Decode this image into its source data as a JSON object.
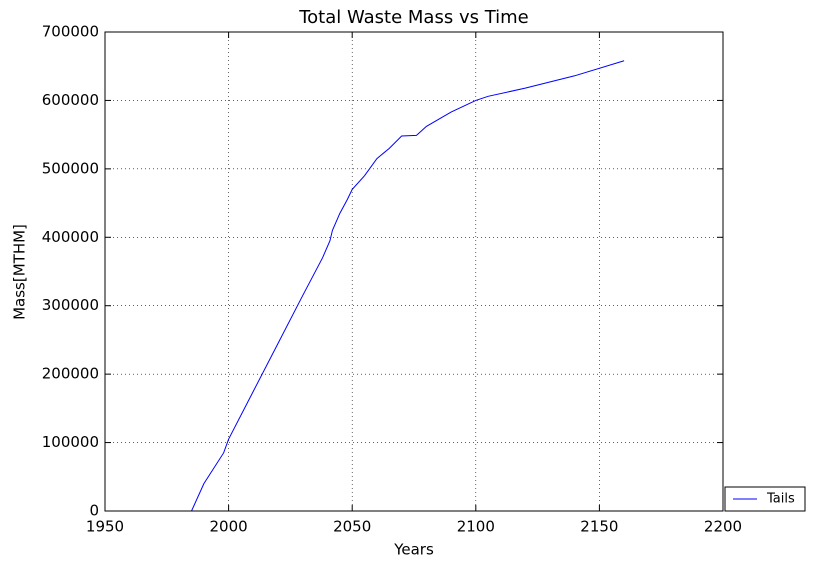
{
  "chart_data": {
    "type": "line",
    "title": "Total Waste Mass vs Time",
    "x_label": "Years",
    "y_label": "Mass[MTHM]",
    "x": [
      1970,
      1985,
      1990,
      1998,
      2000,
      2010,
      2020,
      2030,
      2038,
      2041,
      2042,
      2045,
      2048,
      2050,
      2055,
      2060,
      2065,
      2070,
      2076,
      2080,
      2090,
      2100,
      2105,
      2120,
      2140,
      2160
    ],
    "series": [
      {
        "name": "Tails",
        "color": "#0000ff",
        "values": [
          0,
          0,
          40000,
          85000,
          105000,
          175000,
          245000,
          315000,
          370000,
          395000,
          410000,
          435000,
          455000,
          470000,
          490000,
          515000,
          530000,
          548000,
          549000,
          562000,
          583000,
          600000,
          606000,
          618000,
          636000,
          658000
        ]
      }
    ],
    "xlim": [
      1950,
      2200
    ],
    "xticks": [
      1950,
      2000,
      2050,
      2100,
      2150,
      2200
    ],
    "ylim": [
      0,
      700000
    ],
    "yticks": [
      0,
      100000,
      200000,
      300000,
      400000,
      500000,
      600000,
      700000
    ],
    "grid": true,
    "legend": "lower right"
  }
}
